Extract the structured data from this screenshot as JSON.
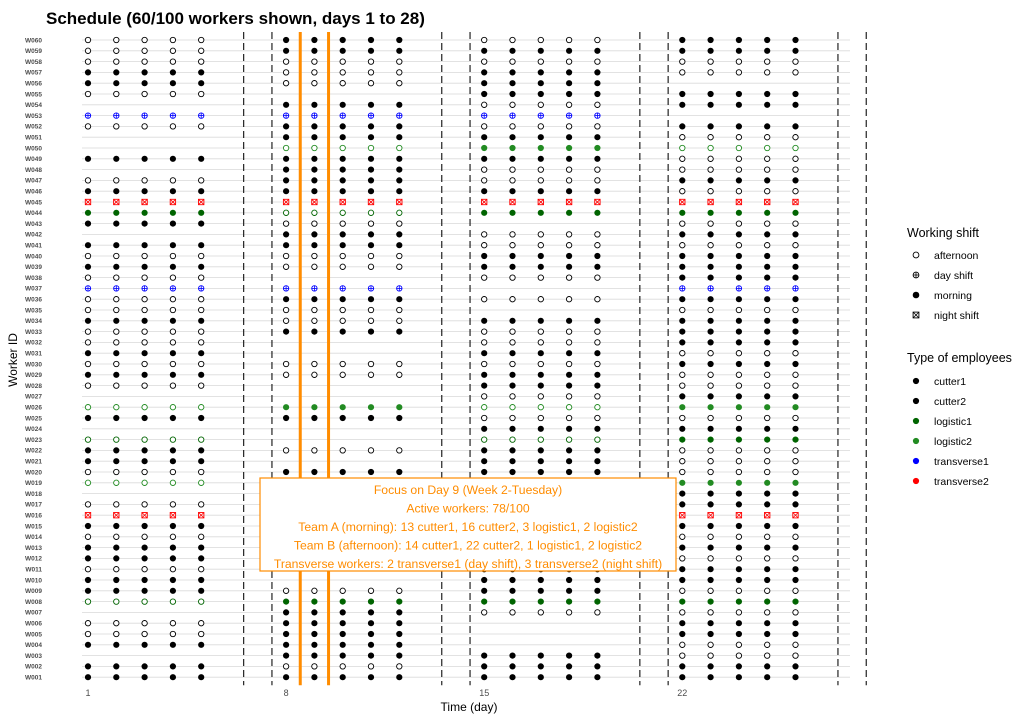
{
  "chart_data": {
    "type": "scatter",
    "title": "Schedule (60/100 workers shown, days 1 to 28)",
    "xlabel": "Time (day)",
    "ylabel": "Worker ID",
    "x_ticks": [
      1,
      8,
      15,
      22
    ],
    "xlim": [
      0,
      28.5
    ],
    "week_separators": [
      6,
      7,
      13,
      14,
      20,
      21,
      27,
      28
    ],
    "focus_day": 9,
    "focus_lines": [
      8.5,
      9.5
    ],
    "workers": [
      "W060",
      "W059",
      "W058",
      "W057",
      "W056",
      "W055",
      "W054",
      "W053",
      "W052",
      "W051",
      "W050",
      "W049",
      "W048",
      "W047",
      "W046",
      "W045",
      "W044",
      "W043",
      "W042",
      "W041",
      "W040",
      "W039",
      "W038",
      "W037",
      "W036",
      "W035",
      "W034",
      "W033",
      "W032",
      "W031",
      "W030",
      "W029",
      "W028",
      "W027",
      "W026",
      "W025",
      "W024",
      "W023",
      "W022",
      "W021",
      "W020",
      "W019",
      "W018",
      "W017",
      "W016",
      "W015",
      "W014",
      "W013",
      "W012",
      "W011",
      "W010",
      "W009",
      "W008",
      "W007",
      "W006",
      "W005",
      "W004",
      "W003",
      "W002",
      "W001"
    ],
    "week_days": [
      [
        1,
        2,
        3,
        4,
        5
      ],
      [
        8,
        9,
        10,
        11,
        12
      ],
      [
        15,
        16,
        17,
        18,
        19
      ],
      [
        22,
        23,
        24,
        25,
        26
      ]
    ],
    "shift_codes": {
      "a": "afternoon",
      "d": "day shift",
      "m": "morning",
      "n": "night shift",
      "-": "off"
    },
    "type_colors": {
      "cutter1": "#000000",
      "cutter2": "#000000",
      "logistic1": "#006400",
      "logistic2": "#228b22",
      "transverse1": "#0000ff",
      "transverse2": "#ff0000"
    },
    "schedule": {
      "W060": {
        "type": "cutter1",
        "weeks": [
          "a",
          "m",
          "a",
          "m"
        ]
      },
      "W059": {
        "type": "cutter1",
        "weeks": [
          "a",
          "m",
          "m",
          "m"
        ]
      },
      "W058": {
        "type": "cutter2",
        "weeks": [
          "a",
          "a",
          "a",
          "a"
        ]
      },
      "W057": {
        "type": "cutter1",
        "weeks": [
          "m",
          "a",
          "m",
          "a"
        ]
      },
      "W056": {
        "type": "cutter2",
        "weeks": [
          "m",
          "a",
          "m",
          "-"
        ]
      },
      "W055": {
        "type": "cutter2",
        "weeks": [
          "a",
          "-",
          "m",
          "m"
        ]
      },
      "W054": {
        "type": "cutter1",
        "weeks": [
          "-",
          "m",
          "a",
          "m"
        ]
      },
      "W053": {
        "type": "transverse1",
        "weeks": [
          "d",
          "d",
          "d",
          "-"
        ]
      },
      "W052": {
        "type": "cutter2",
        "weeks": [
          "a",
          "m",
          "a",
          "m"
        ]
      },
      "W051": {
        "type": "cutter1",
        "weeks": [
          "-",
          "m",
          "m",
          "a"
        ]
      },
      "W050": {
        "type": "logistic2",
        "weeks": [
          "-",
          "a",
          "m",
          "a"
        ]
      },
      "W049": {
        "type": "cutter1",
        "weeks": [
          "m",
          "m",
          "m",
          "a"
        ]
      },
      "W048": {
        "type": "cutter2",
        "weeks": [
          "-",
          "m",
          "a",
          "a"
        ]
      },
      "W047": {
        "type": "cutter1",
        "weeks": [
          "a",
          "m",
          "a",
          "m"
        ]
      },
      "W046": {
        "type": "cutter2",
        "weeks": [
          "m",
          "m",
          "m",
          "a"
        ]
      },
      "W045": {
        "type": "transverse2",
        "weeks": [
          "n",
          "n",
          "n",
          "n"
        ]
      },
      "W044": {
        "type": "logistic1",
        "weeks": [
          "m",
          "a",
          "m",
          "m"
        ]
      },
      "W043": {
        "type": "cutter2",
        "weeks": [
          "m",
          "a",
          "-",
          "a"
        ]
      },
      "W042": {
        "type": "cutter1",
        "weeks": [
          "-",
          "m",
          "a",
          "m"
        ]
      },
      "W041": {
        "type": "cutter2",
        "weeks": [
          "m",
          "m",
          "a",
          "a"
        ]
      },
      "W040": {
        "type": "cutter1",
        "weeks": [
          "a",
          "a",
          "m",
          "m"
        ]
      },
      "W039": {
        "type": "cutter2",
        "weeks": [
          "m",
          "a",
          "m",
          "m"
        ]
      },
      "W038": {
        "type": "cutter1",
        "weeks": [
          "a",
          "-",
          "a",
          "m"
        ]
      },
      "W037": {
        "type": "transverse1",
        "weeks": [
          "d",
          "d",
          "-",
          "d"
        ]
      },
      "W036": {
        "type": "cutter2",
        "weeks": [
          "a",
          "m",
          "a",
          "m"
        ]
      },
      "W035": {
        "type": "cutter1",
        "weeks": [
          "a",
          "a",
          "-",
          "a"
        ]
      },
      "W034": {
        "type": "cutter2",
        "weeks": [
          "m",
          "a",
          "m",
          "m"
        ]
      },
      "W033": {
        "type": "cutter1",
        "weeks": [
          "a",
          "m",
          "a",
          "m"
        ]
      },
      "W032": {
        "type": "cutter2",
        "weeks": [
          "a",
          "-",
          "a",
          "m"
        ]
      },
      "W031": {
        "type": "cutter1",
        "weeks": [
          "m",
          "-",
          "m",
          "a"
        ]
      },
      "W030": {
        "type": "cutter2",
        "weeks": [
          "a",
          "a",
          "a",
          "m"
        ]
      },
      "W029": {
        "type": "cutter1",
        "weeks": [
          "m",
          "a",
          "m",
          "a"
        ]
      },
      "W028": {
        "type": "cutter2",
        "weeks": [
          "a",
          "-",
          "m",
          "a"
        ]
      },
      "W027": {
        "type": "cutter1",
        "weeks": [
          "-",
          "-",
          "a",
          "m"
        ]
      },
      "W026": {
        "type": "logistic2",
        "weeks": [
          "a",
          "m",
          "a",
          "m"
        ]
      },
      "W025": {
        "type": "cutter1",
        "weeks": [
          "m",
          "m",
          "a",
          "a"
        ]
      },
      "W024": {
        "type": "cutter2",
        "weeks": [
          "-",
          "-",
          "m",
          "m"
        ]
      },
      "W023": {
        "type": "logistic1",
        "weeks": [
          "a",
          "-",
          "a",
          "m"
        ]
      },
      "W022": {
        "type": "cutter2",
        "weeks": [
          "m",
          "a",
          "m",
          "a"
        ]
      },
      "W021": {
        "type": "cutter1",
        "weeks": [
          "m",
          "-",
          "m",
          "a"
        ]
      },
      "W020": {
        "type": "cutter2",
        "weeks": [
          "a",
          "m",
          "m",
          "a"
        ]
      },
      "W019": {
        "type": "logistic2",
        "weeks": [
          "a",
          "-",
          "a",
          "m"
        ]
      },
      "W018": {
        "type": "cutter1",
        "weeks": [
          "-",
          "-",
          "-",
          "m"
        ]
      },
      "W017": {
        "type": "cutter2",
        "weeks": [
          "a",
          "-",
          "a",
          "m"
        ]
      },
      "W016": {
        "type": "transverse2",
        "weeks": [
          "n",
          "-",
          "-",
          "n"
        ]
      },
      "W015": {
        "type": "cutter1",
        "weeks": [
          "m",
          "-",
          "a",
          "m"
        ]
      },
      "W014": {
        "type": "cutter2",
        "weeks": [
          "a",
          "-",
          "m",
          "a"
        ]
      },
      "W013": {
        "type": "cutter1",
        "weeks": [
          "m",
          "-",
          "a",
          "m"
        ]
      },
      "W012": {
        "type": "cutter2",
        "weeks": [
          "m",
          "-",
          "m",
          "a"
        ]
      },
      "W011": {
        "type": "cutter1",
        "weeks": [
          "a",
          "-",
          "a",
          "m"
        ]
      },
      "W010": {
        "type": "cutter2",
        "weeks": [
          "m",
          "-",
          "m",
          "m"
        ]
      },
      "W009": {
        "type": "cutter1",
        "weeks": [
          "m",
          "a",
          "m",
          "a"
        ]
      },
      "W008": {
        "type": "logistic1",
        "weeks": [
          "a",
          "m",
          "m",
          "m"
        ]
      },
      "W007": {
        "type": "cutter2",
        "weeks": [
          "-",
          "m",
          "a",
          "a"
        ]
      },
      "W006": {
        "type": "cutter1",
        "weeks": [
          "a",
          "m",
          "-",
          "m"
        ]
      },
      "W005": {
        "type": "cutter2",
        "weeks": [
          "a",
          "m",
          "-",
          "m"
        ]
      },
      "W004": {
        "type": "cutter1",
        "weeks": [
          "m",
          "m",
          "-",
          "a"
        ]
      },
      "W003": {
        "type": "cutter2",
        "weeks": [
          "-",
          "m",
          "m",
          "a"
        ]
      },
      "W002": {
        "type": "cutter1",
        "weeks": [
          "m",
          "a",
          "m",
          "m"
        ]
      },
      "W001": {
        "type": "cutter2",
        "weeks": [
          "m",
          "m",
          "m",
          "m"
        ]
      }
    },
    "legend_placement": "right",
    "legend_shift": {
      "title": "Working shift",
      "items": [
        {
          "label": "afternoon",
          "marker": "open-circle"
        },
        {
          "label": "day shift",
          "marker": "circle-plus"
        },
        {
          "label": "morning",
          "marker": "filled-circle"
        },
        {
          "label": "night shift",
          "marker": "square-x"
        }
      ]
    },
    "legend_type": {
      "title": "Type of employees",
      "items": [
        {
          "label": "cutter1",
          "color": "#000000"
        },
        {
          "label": "cutter2",
          "color": "#000000"
        },
        {
          "label": "logistic1",
          "color": "#006400"
        },
        {
          "label": "logistic2",
          "color": "#228b22"
        },
        {
          "label": "transverse1",
          "color": "#0000ff"
        },
        {
          "label": "transverse2",
          "color": "#ff0000"
        }
      ]
    },
    "annotation": {
      "lines": [
        "Focus on Day 9 (Week 2-Tuesday)",
        "Active workers: 78/100",
        "Team A (morning): 13 cutter1, 16 cutter2, 3 logistic1, 2 logistic2",
        "Team B (afternoon): 14 cutter1, 22 cutter2, 1 logistic1, 2 logistic2",
        "Transverse workers: 2 transverse1 (day shift), 3 transverse2 (night shift)"
      ],
      "color": "#ff8c00"
    }
  }
}
